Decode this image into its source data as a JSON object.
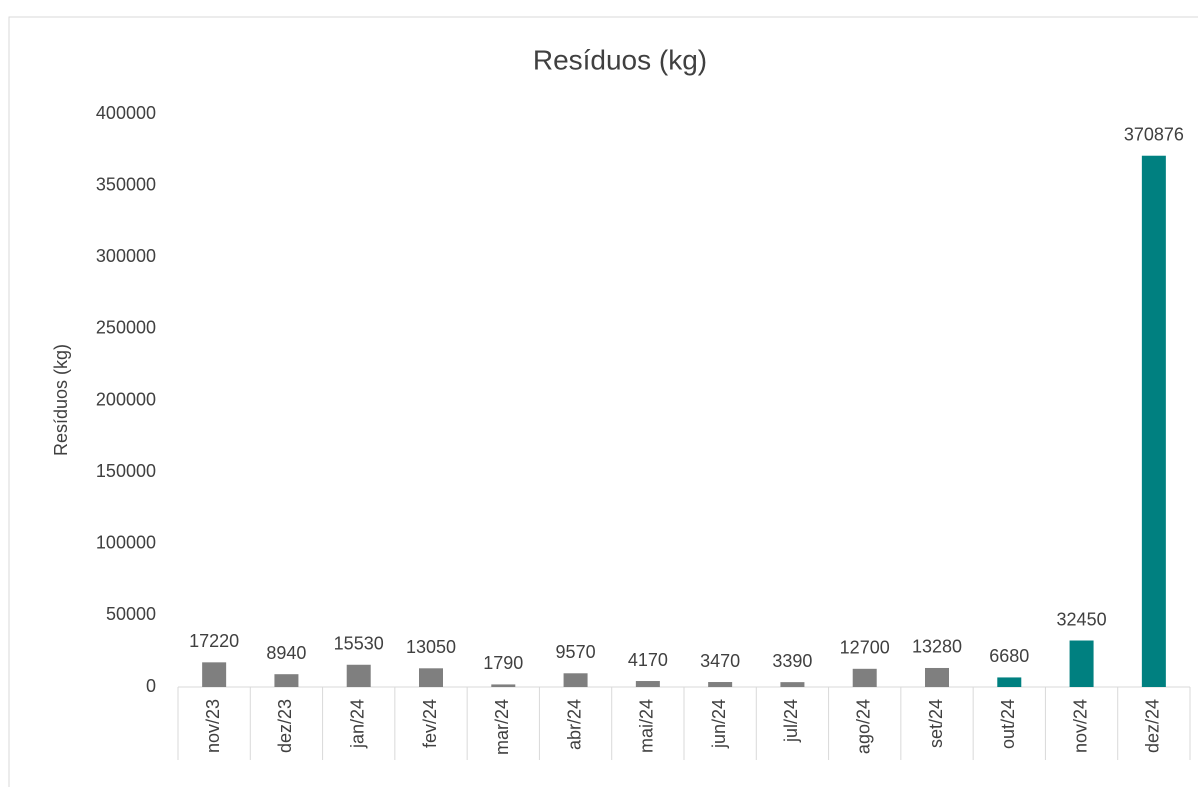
{
  "chart_data": {
    "type": "bar",
    "title": "Resíduos (kg)",
    "y_label": "Resíduos (kg)",
    "categories": [
      "nov/23",
      "dez/23",
      "jan/24",
      "fev/24",
      "mar/24",
      "abr/24",
      "mai/24",
      "jun/24",
      "jul/24",
      "ago/24",
      "set/24",
      "out/24",
      "nov/24",
      "dez/24"
    ],
    "values": [
      17220,
      8940,
      15530,
      13050,
      1790,
      9570,
      4170,
      3470,
      3390,
      12700,
      13280,
      6680,
      32450,
      370876
    ],
    "colors": [
      "#7f7f7f",
      "#7f7f7f",
      "#7f7f7f",
      "#7f7f7f",
      "#7f7f7f",
      "#7f7f7f",
      "#7f7f7f",
      "#7f7f7f",
      "#7f7f7f",
      "#7f7f7f",
      "#7f7f7f",
      "#008080",
      "#008080",
      "#008080"
    ],
    "ylim": [
      0,
      400000
    ],
    "yticks": [
      0,
      50000,
      100000,
      150000,
      200000,
      250000,
      300000,
      350000,
      400000
    ],
    "grid": false
  }
}
